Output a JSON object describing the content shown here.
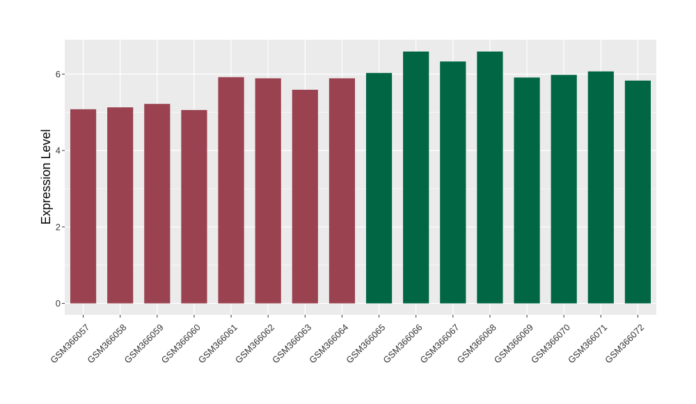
{
  "chart_data": {
    "type": "bar",
    "title": "",
    "xlabel": "",
    "ylabel": "Expression Level",
    "ylim": [
      -0.3,
      6.9
    ],
    "yticks": [
      0,
      2,
      4,
      6
    ],
    "grid": true,
    "legend": "none",
    "categories": [
      "GSM366057",
      "GSM366058",
      "GSM366059",
      "GSM366060",
      "GSM366061",
      "GSM366062",
      "GSM366063",
      "GSM366064",
      "GSM366065",
      "GSM366066",
      "GSM366067",
      "GSM366068",
      "GSM366069",
      "GSM366070",
      "GSM366071",
      "GSM366072"
    ],
    "values": [
      5.08,
      5.13,
      5.22,
      5.06,
      5.92,
      5.89,
      5.59,
      5.89,
      6.03,
      6.59,
      6.33,
      6.59,
      5.91,
      5.98,
      6.07,
      5.83
    ],
    "bar_colors": [
      "#9a4250",
      "#9a4250",
      "#9a4250",
      "#9a4250",
      "#9a4250",
      "#9a4250",
      "#9a4250",
      "#9a4250",
      "#006644",
      "#006644",
      "#006644",
      "#006644",
      "#006644",
      "#006644",
      "#006644",
      "#006644"
    ],
    "panel_color": "#ebebeb",
    "grid_color": "#ffffff"
  }
}
